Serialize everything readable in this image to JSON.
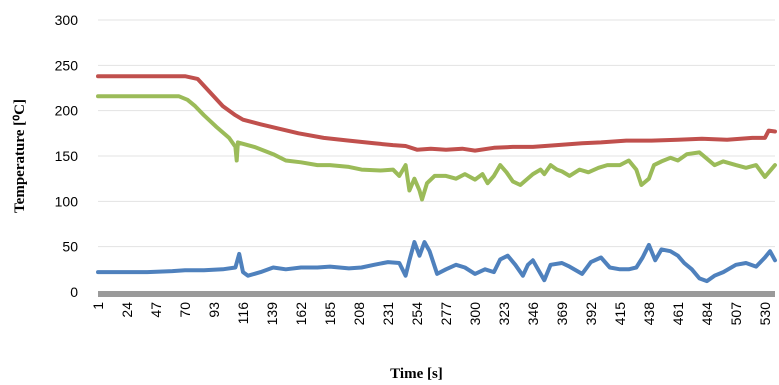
{
  "chart_data": {
    "type": "line",
    "xlabel": "Time [s]",
    "ylabel": "Temperature [⁰C]",
    "ylim": [
      0,
      300
    ],
    "yticks": [
      0,
      50,
      100,
      150,
      200,
      250,
      300
    ],
    "xticks": [
      1,
      24,
      47,
      70,
      93,
      116,
      139,
      162,
      185,
      208,
      231,
      254,
      277,
      300,
      323,
      346,
      369,
      392,
      415,
      438,
      461,
      484,
      507,
      530
    ],
    "xlim": [
      1,
      538
    ],
    "grid": "horizontal",
    "series": [
      {
        "color": "#c0504d",
        "points": [
          [
            1,
            238
          ],
          [
            20,
            238
          ],
          [
            50,
            238
          ],
          [
            70,
            238
          ],
          [
            80,
            235
          ],
          [
            90,
            220
          ],
          [
            100,
            205
          ],
          [
            110,
            195
          ],
          [
            116,
            190
          ],
          [
            130,
            185
          ],
          [
            145,
            180
          ],
          [
            160,
            175
          ],
          [
            180,
            170
          ],
          [
            200,
            167
          ],
          [
            220,
            164
          ],
          [
            235,
            162
          ],
          [
            245,
            161
          ],
          [
            254,
            157
          ],
          [
            265,
            158
          ],
          [
            277,
            157
          ],
          [
            290,
            158
          ],
          [
            300,
            156
          ],
          [
            315,
            159
          ],
          [
            330,
            160
          ],
          [
            346,
            160
          ],
          [
            365,
            162
          ],
          [
            385,
            164
          ],
          [
            400,
            165
          ],
          [
            420,
            167
          ],
          [
            440,
            167
          ],
          [
            461,
            168
          ],
          [
            480,
            169
          ],
          [
            500,
            168
          ],
          [
            520,
            170
          ],
          [
            530,
            170
          ],
          [
            533,
            178
          ],
          [
            538,
            177
          ]
        ]
      },
      {
        "color": "#9bbb59",
        "points": [
          [
            1,
            216
          ],
          [
            20,
            216
          ],
          [
            45,
            216
          ],
          [
            65,
            216
          ],
          [
            72,
            212
          ],
          [
            78,
            205
          ],
          [
            85,
            195
          ],
          [
            95,
            182
          ],
          [
            105,
            170
          ],
          [
            110,
            160
          ],
          [
            111,
            145
          ],
          [
            112,
            165
          ],
          [
            125,
            160
          ],
          [
            140,
            152
          ],
          [
            150,
            145
          ],
          [
            162,
            143
          ],
          [
            175,
            140
          ],
          [
            185,
            140
          ],
          [
            200,
            138
          ],
          [
            210,
            135
          ],
          [
            225,
            134
          ],
          [
            235,
            135
          ],
          [
            240,
            128
          ],
          [
            245,
            140
          ],
          [
            248,
            112
          ],
          [
            252,
            125
          ],
          [
            256,
            112
          ],
          [
            258,
            102
          ],
          [
            262,
            120
          ],
          [
            268,
            128
          ],
          [
            277,
            128
          ],
          [
            285,
            125
          ],
          [
            292,
            130
          ],
          [
            300,
            124
          ],
          [
            306,
            130
          ],
          [
            310,
            120
          ],
          [
            315,
            128
          ],
          [
            320,
            140
          ],
          [
            325,
            132
          ],
          [
            330,
            122
          ],
          [
            336,
            118
          ],
          [
            346,
            130
          ],
          [
            352,
            135
          ],
          [
            355,
            130
          ],
          [
            360,
            140
          ],
          [
            365,
            135
          ],
          [
            369,
            133
          ],
          [
            375,
            128
          ],
          [
            383,
            135
          ],
          [
            390,
            132
          ],
          [
            398,
            137
          ],
          [
            405,
            140
          ],
          [
            415,
            140
          ],
          [
            422,
            145
          ],
          [
            428,
            135
          ],
          [
            432,
            118
          ],
          [
            438,
            125
          ],
          [
            442,
            140
          ],
          [
            448,
            144
          ],
          [
            455,
            148
          ],
          [
            461,
            145
          ],
          [
            468,
            152
          ],
          [
            478,
            154
          ],
          [
            484,
            147
          ],
          [
            490,
            140
          ],
          [
            497,
            144
          ],
          [
            507,
            140
          ],
          [
            515,
            137
          ],
          [
            523,
            140
          ],
          [
            530,
            127
          ],
          [
            538,
            140
          ]
        ]
      },
      {
        "color": "#4f81bd",
        "points": [
          [
            1,
            22
          ],
          [
            20,
            22
          ],
          [
            40,
            22
          ],
          [
            60,
            23
          ],
          [
            70,
            24
          ],
          [
            85,
            24
          ],
          [
            100,
            25
          ],
          [
            110,
            27
          ],
          [
            113,
            42
          ],
          [
            116,
            22
          ],
          [
            120,
            18
          ],
          [
            130,
            22
          ],
          [
            140,
            27
          ],
          [
            150,
            25
          ],
          [
            162,
            27
          ],
          [
            175,
            27
          ],
          [
            185,
            28
          ],
          [
            200,
            26
          ],
          [
            210,
            27
          ],
          [
            220,
            30
          ],
          [
            231,
            33
          ],
          [
            240,
            32
          ],
          [
            245,
            18
          ],
          [
            248,
            35
          ],
          [
            252,
            55
          ],
          [
            256,
            40
          ],
          [
            260,
            55
          ],
          [
            264,
            45
          ],
          [
            270,
            20
          ],
          [
            277,
            25
          ],
          [
            285,
            30
          ],
          [
            292,
            27
          ],
          [
            300,
            20
          ],
          [
            308,
            25
          ],
          [
            315,
            22
          ],
          [
            320,
            36
          ],
          [
            326,
            40
          ],
          [
            332,
            30
          ],
          [
            338,
            18
          ],
          [
            342,
            30
          ],
          [
            346,
            35
          ],
          [
            350,
            25
          ],
          [
            355,
            13
          ],
          [
            360,
            30
          ],
          [
            369,
            32
          ],
          [
            375,
            28
          ],
          [
            385,
            20
          ],
          [
            392,
            33
          ],
          [
            400,
            38
          ],
          [
            407,
            27
          ],
          [
            415,
            25
          ],
          [
            422,
            25
          ],
          [
            428,
            27
          ],
          [
            433,
            38
          ],
          [
            438,
            52
          ],
          [
            443,
            35
          ],
          [
            448,
            47
          ],
          [
            455,
            45
          ],
          [
            461,
            40
          ],
          [
            466,
            32
          ],
          [
            472,
            25
          ],
          [
            478,
            15
          ],
          [
            484,
            12
          ],
          [
            490,
            18
          ],
          [
            497,
            22
          ],
          [
            507,
            30
          ],
          [
            515,
            32
          ],
          [
            523,
            28
          ],
          [
            530,
            38
          ],
          [
            534,
            45
          ],
          [
            538,
            35
          ]
        ]
      }
    ]
  }
}
